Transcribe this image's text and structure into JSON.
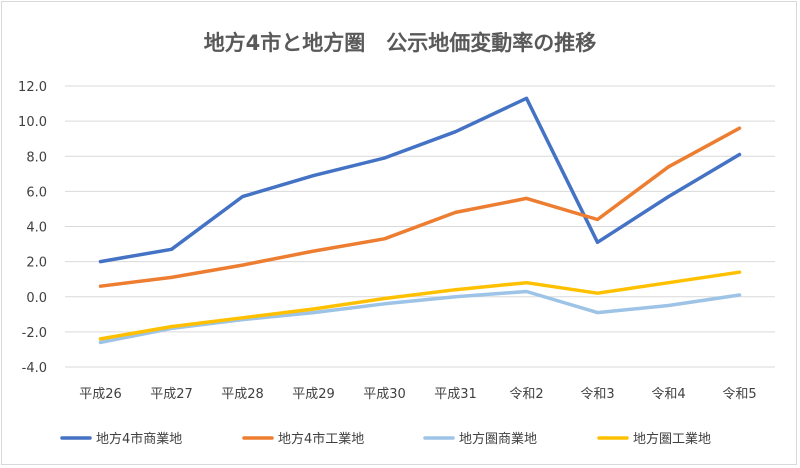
{
  "chart_data": {
    "type": "line",
    "title": "地方4市と地方圏　公示地価変動率の推移",
    "categories": [
      "平成26",
      "平成27",
      "平成28",
      "平成29",
      "平成30",
      "平成31",
      "令和2",
      "令和3",
      "令和4",
      "令和5"
    ],
    "ylim": [
      -4.0,
      12.0
    ],
    "yticks": [
      "12.0",
      "10.0",
      "8.0",
      "6.0",
      "4.0",
      "2.0",
      "0.0",
      "-2.0",
      "-4.0"
    ],
    "grid": true,
    "legend_position": "bottom",
    "series": [
      {
        "name": "地方4市商業地",
        "color": "#4472c4",
        "values": [
          2.0,
          2.7,
          5.7,
          6.9,
          7.9,
          9.4,
          11.3,
          3.1,
          5.7,
          8.1
        ]
      },
      {
        "name": "地方4市工業地",
        "color": "#ed7d31",
        "values": [
          0.6,
          1.1,
          1.8,
          2.6,
          3.3,
          4.8,
          5.6,
          4.4,
          7.4,
          9.6
        ]
      },
      {
        "name": "地方圏商業地",
        "color": "#9dc3e6",
        "values": [
          -2.6,
          -1.8,
          -1.3,
          -0.9,
          -0.4,
          0.0,
          0.3,
          -0.9,
          -0.5,
          0.1
        ]
      },
      {
        "name": "地方圏工業地",
        "color": "#ffc000",
        "values": [
          -2.4,
          -1.7,
          -1.2,
          -0.7,
          -0.1,
          0.4,
          0.8,
          0.2,
          0.8,
          1.4
        ]
      }
    ]
  }
}
